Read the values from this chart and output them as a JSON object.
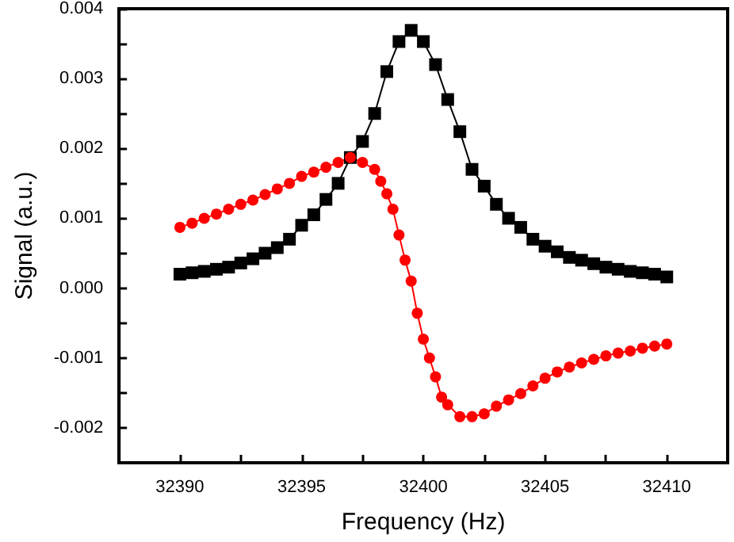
{
  "chart_data": {
    "type": "line",
    "xlabel": "Frequency (Hz)",
    "ylabel": "Signal (a.u.)",
    "xlim": [
      32387.5,
      32412.5
    ],
    "xticks": [
      32390,
      {
        "value": 32392.5,
        "label": null
      },
      32395,
      {
        "value": 32397.5,
        "label": null
      },
      32400,
      {
        "value": 32402.5,
        "label": null
      },
      32405,
      {
        "value": 32407.5,
        "label": null
      },
      32410
    ],
    "ylim": [
      -0.0025,
      0.004
    ],
    "yticks": [
      -0.002,
      {
        "value": -0.0015,
        "label": null
      },
      -0.001,
      {
        "value": -0.0005,
        "label": null
      },
      {
        "value": 0,
        "label": "0.000"
      },
      {
        "value": 0.0005,
        "label": null
      },
      0.001,
      {
        "value": 0.0015,
        "label": null
      },
      0.002,
      {
        "value": 0.0025,
        "label": null
      },
      0.003,
      {
        "value": 0.0035,
        "label": null
      },
      0.004
    ],
    "grid": false,
    "line_style": "solid",
    "series": [
      {
        "color": "#000000",
        "marker": "square",
        "x": [
          32390,
          32390.5,
          32391,
          32391.5,
          32392,
          32392.5,
          32393,
          32393.5,
          32394,
          32394.5,
          32395,
          32395.5,
          32396,
          32396.5,
          32397,
          32397.5,
          32398,
          32398.5,
          32399,
          32399.5,
          32400,
          32400.5,
          32401,
          32401.5,
          32402,
          32402.5,
          32403,
          32403.5,
          32404,
          32404.5,
          32405,
          32405.5,
          32406,
          32406.5,
          32407,
          32407.5,
          32408,
          32408.5,
          32409,
          32409.5,
          32410
        ],
        "values": [
          0.0002,
          0.00022,
          0.00024,
          0.00027,
          0.0003,
          0.00036,
          0.00042,
          0.0005,
          0.00058,
          0.0007,
          0.0009,
          0.00105,
          0.00127,
          0.0015,
          0.00187,
          0.0021,
          0.0025,
          0.0031,
          0.00353,
          0.00369,
          0.00353,
          0.0032,
          0.0027,
          0.00224,
          0.0017,
          0.00146,
          0.0012,
          0.001,
          0.00087,
          0.0007,
          0.0006,
          0.00052,
          0.00044,
          0.0004,
          0.00035,
          0.0003,
          0.00027,
          0.00024,
          0.00022,
          0.0002,
          0.00016
        ]
      },
      {
        "color": "#ff0000",
        "marker": "circle",
        "x": [
          32390,
          32390.5,
          32391,
          32391.5,
          32392,
          32392.5,
          32393,
          32393.5,
          32394,
          32394.5,
          32395,
          32395.5,
          32396,
          32396.5,
          32397,
          32397.5,
          32398,
          32398.25,
          32398.5,
          32398.75,
          32399,
          32399.25,
          32399.5,
          32399.75,
          32400,
          32400.25,
          32400.5,
          32400.75,
          32401,
          32401.5,
          32402,
          32402.5,
          32403,
          32403.5,
          32404,
          32404.5,
          32405,
          32405.5,
          32406,
          32406.5,
          32407,
          32407.5,
          32408,
          32408.5,
          32409,
          32409.5,
          32410
        ],
        "values": [
          0.00087,
          0.00093,
          0.001,
          0.00106,
          0.00113,
          0.0012,
          0.00126,
          0.00134,
          0.00142,
          0.0015,
          0.0016,
          0.00166,
          0.00173,
          0.0018,
          0.00187,
          0.0018,
          0.0017,
          0.00153,
          0.00135,
          0.00113,
          0.00076,
          0.0004,
          0.0001,
          -0.00036,
          -0.00073,
          -0.001,
          -0.00127,
          -0.00156,
          -0.00167,
          -0.00184,
          -0.00184,
          -0.0018,
          -0.00169,
          -0.0016,
          -0.00151,
          -0.0014,
          -0.00129,
          -0.0012,
          -0.00113,
          -0.00107,
          -0.00102,
          -0.00097,
          -0.00093,
          -0.0009,
          -0.00086,
          -0.00083,
          -0.0008
        ]
      }
    ]
  }
}
